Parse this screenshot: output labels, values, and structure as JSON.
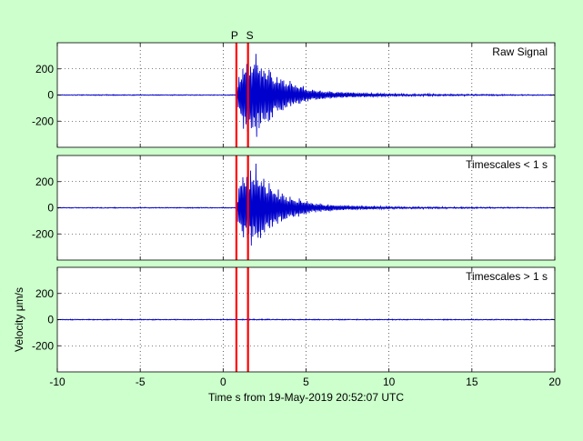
{
  "figure": {
    "background": "#ccffcc",
    "xlabel": "Time s from 19-May-2019 20:52:07 UTC",
    "ylabel": "Velocity μm/s",
    "phase_labels": [
      "P",
      "S"
    ]
  },
  "chart_data": [
    {
      "type": "line",
      "title": "Raw Signal",
      "xlim": [
        -10,
        20
      ],
      "ylim": [
        -400,
        400
      ],
      "xticks": [
        -10,
        -5,
        0,
        5,
        10,
        15,
        20
      ],
      "yticks": [
        -200,
        0,
        200
      ],
      "grid": true,
      "series": [
        {
          "color": "#0000cc",
          "x": [
            -10,
            0.5,
            0.8,
            0.95,
            1.1,
            1.25,
            1.4,
            1.55,
            1.7,
            1.85,
            2.0,
            2.2,
            2.4,
            2.6,
            2.8,
            3.0,
            3.2,
            3.4,
            3.6,
            3.8,
            4.0,
            4.3,
            4.6,
            5.0,
            5.5,
            6.0,
            7.0,
            8.0,
            9.0,
            10.0,
            12.0,
            15.0,
            20.0
          ],
          "values": [
            0,
            0,
            0,
            -180,
            220,
            -320,
            280,
            -300,
            320,
            -260,
            370,
            -280,
            270,
            -220,
            240,
            -180,
            160,
            -150,
            150,
            -110,
            110,
            -90,
            80,
            -60,
            45,
            -35,
            25,
            -18,
            14,
            -10,
            7,
            -5,
            0
          ]
        }
      ],
      "markers": [
        {
          "label": "P",
          "x": 0.8,
          "color": "#ff0000"
        },
        {
          "label": "S",
          "x": 1.5,
          "color": "#ff0000"
        }
      ]
    },
    {
      "type": "line",
      "title": "Timescales < 1 s",
      "xlim": [
        -10,
        20
      ],
      "ylim": [
        -400,
        400
      ],
      "xticks": [
        -10,
        -5,
        0,
        5,
        10,
        15,
        20
      ],
      "yticks": [
        -200,
        0,
        200
      ],
      "grid": true,
      "series": [
        {
          "color": "#0000cc",
          "x": [
            -10,
            0.5,
            0.8,
            0.95,
            1.1,
            1.25,
            1.4,
            1.55,
            1.7,
            1.85,
            2.0,
            2.2,
            2.4,
            2.6,
            2.8,
            3.0,
            3.2,
            3.4,
            3.6,
            3.8,
            4.0,
            4.3,
            4.6,
            5.0,
            5.5,
            6.0,
            7.0,
            8.0,
            9.0,
            10.0,
            12.0,
            15.0,
            20.0
          ],
          "values": [
            0,
            0,
            0,
            -180,
            220,
            -320,
            280,
            -300,
            320,
            -260,
            360,
            -270,
            260,
            -210,
            230,
            -175,
            150,
            -140,
            140,
            -105,
            100,
            -85,
            75,
            -55,
            40,
            -30,
            22,
            -15,
            12,
            -8,
            6,
            -4,
            0
          ]
        }
      ],
      "markers": [
        {
          "label": "P",
          "x": 0.8,
          "color": "#ff0000"
        },
        {
          "label": "S",
          "x": 1.5,
          "color": "#ff0000"
        }
      ]
    },
    {
      "type": "line",
      "title": "Timescales > 1 s",
      "xlim": [
        -10,
        20
      ],
      "ylim": [
        -400,
        400
      ],
      "xticks": [
        -10,
        -5,
        0,
        5,
        10,
        15,
        20
      ],
      "yticks": [
        -200,
        0,
        200
      ],
      "grid": true,
      "series": [
        {
          "color": "#0000cc",
          "x": [
            -10,
            -5,
            0,
            1,
            2,
            5,
            10,
            15,
            20
          ],
          "values": [
            0,
            0,
            0,
            2,
            -2,
            1,
            0,
            0,
            0
          ]
        }
      ],
      "markers": [
        {
          "label": "P",
          "x": 0.8,
          "color": "#ff0000"
        },
        {
          "label": "S",
          "x": 1.5,
          "color": "#ff0000"
        }
      ]
    }
  ]
}
